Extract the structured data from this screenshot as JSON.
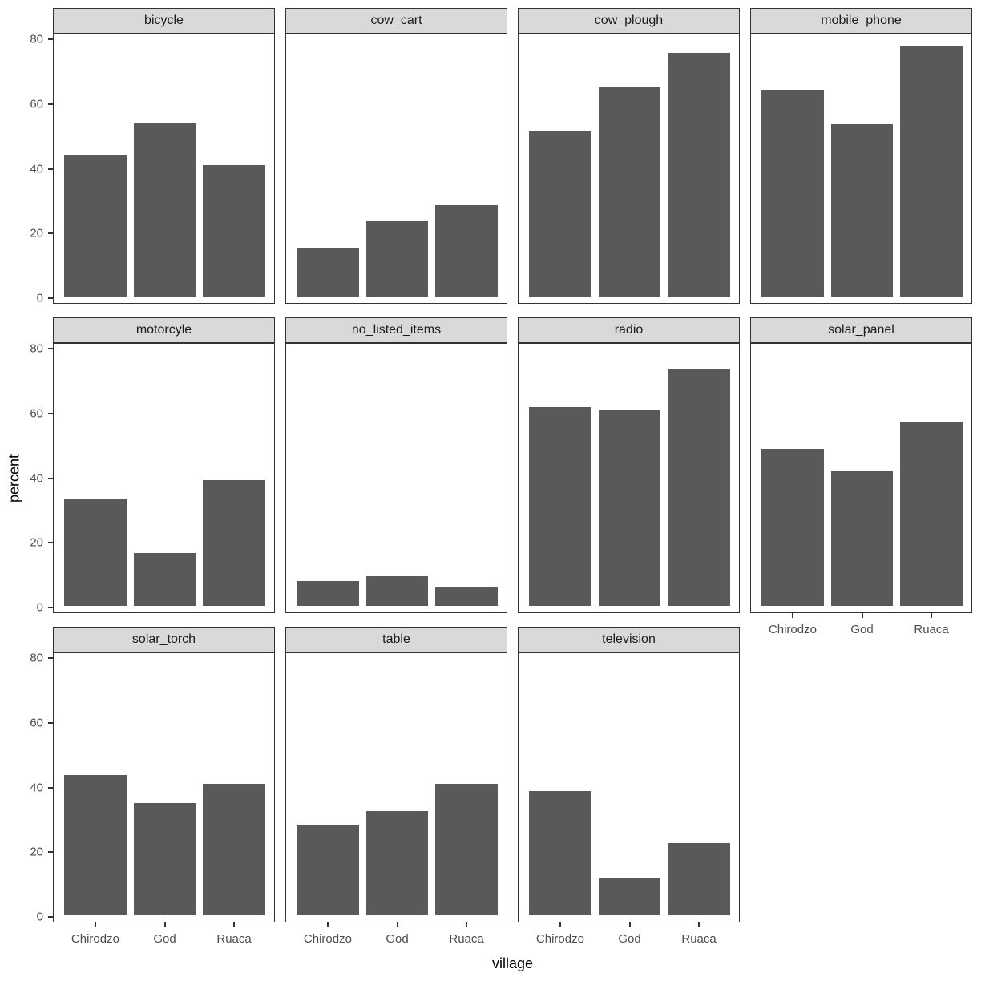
{
  "chart_data": {
    "type": "bar",
    "title": "",
    "xlabel": "village",
    "ylabel": "percent",
    "categories": [
      "Chirodzo",
      "God",
      "Ruaca"
    ],
    "yticks": [
      0,
      20,
      40,
      60,
      80
    ],
    "ylim": [
      0,
      81.5
    ],
    "grid": "off",
    "legend": "none",
    "facet_layout": {
      "columns": 4,
      "rows": 3
    },
    "facets": [
      {
        "label": "bicycle",
        "values": [
          43.5,
          53.4,
          40.7
        ]
      },
      {
        "label": "cow_cart",
        "values": [
          15.1,
          23.2,
          28.3
        ]
      },
      {
        "label": "cow_plough",
        "values": [
          51.1,
          64.8,
          75.3
        ]
      },
      {
        "label": "mobile_phone",
        "values": [
          63.8,
          53.3,
          77.4
        ]
      },
      {
        "label": "motorcyle",
        "values": [
          33.2,
          16.3,
          38.8
        ]
      },
      {
        "label": "no_listed_items",
        "values": [
          7.7,
          9.2,
          6.0
        ]
      },
      {
        "label": "radio",
        "values": [
          61.4,
          60.4,
          73.4
        ]
      },
      {
        "label": "solar_panel",
        "values": [
          48.6,
          41.7,
          56.9
        ]
      },
      {
        "label": "solar_torch",
        "values": [
          43.4,
          34.6,
          40.6
        ]
      },
      {
        "label": "table",
        "values": [
          28.0,
          32.3,
          40.6
        ]
      },
      {
        "label": "television",
        "values": [
          38.4,
          11.4,
          22.3
        ]
      }
    ],
    "colors": {
      "bar_fill": "#595959",
      "strip_background": "#D9D9D9",
      "panel_border": "#333333",
      "tick_text": "#4D4D4D",
      "axis_title_text": "#000000",
      "plot_background": "#FFFFFF"
    }
  }
}
